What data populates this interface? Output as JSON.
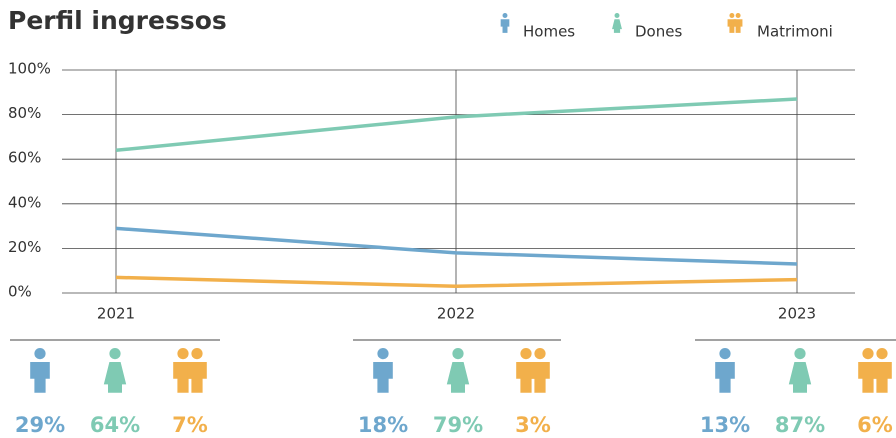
{
  "chart_data": {
    "type": "line",
    "title": "Perfil ingressos",
    "categories": [
      "2021",
      "2022",
      "2023"
    ],
    "series": [
      {
        "name": "Homes",
        "color": "#6ea7cd",
        "values": [
          29,
          18,
          13
        ],
        "value_labels": [
          "29%",
          "18%",
          "13%"
        ]
      },
      {
        "name": "Dones",
        "color": "#7fcab3",
        "values": [
          64,
          79,
          87
        ],
        "value_labels": [
          "64%",
          "79%",
          "87%"
        ]
      },
      {
        "name": "Matrimoni",
        "color": "#f2b04b",
        "values": [
          7,
          3,
          6
        ],
        "value_labels": [
          "7%",
          "3%",
          "6%"
        ]
      }
    ],
    "ylim": [
      0,
      100
    ],
    "yticks": [
      {
        "value": 0,
        "label": "0%"
      },
      {
        "value": 20,
        "label": "20%"
      },
      {
        "value": 40,
        "label": "40%"
      },
      {
        "value": 60,
        "label": "60%"
      },
      {
        "value": 80,
        "label": "80%"
      },
      {
        "value": 100,
        "label": "100%"
      }
    ],
    "grid": true,
    "legend": "top-right"
  }
}
